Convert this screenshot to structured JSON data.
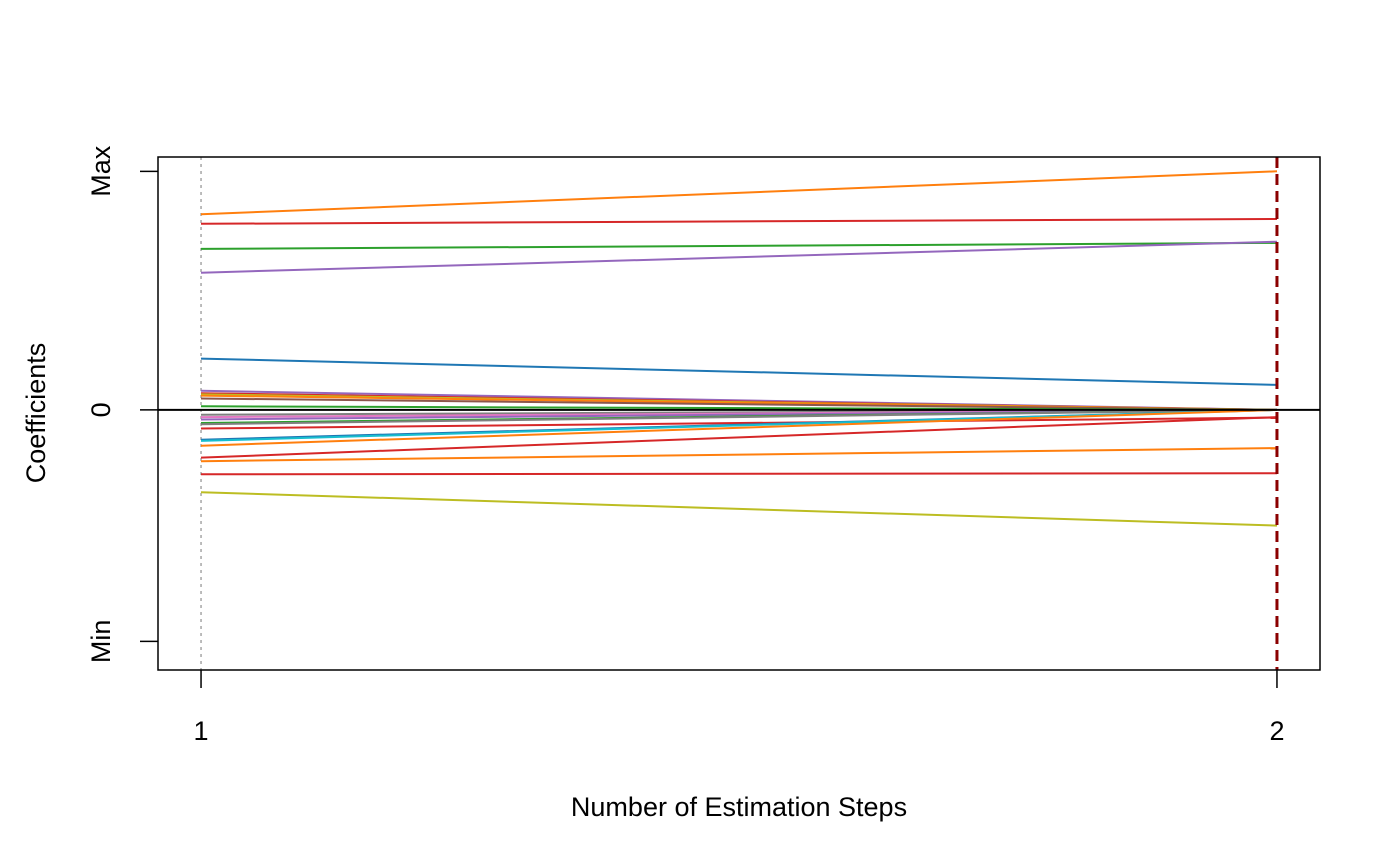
{
  "chart_data": {
    "type": "line",
    "title": "",
    "xlabel": "Number of Estimation Steps",
    "ylabel": "Coefficients",
    "x": [
      1,
      2
    ],
    "xlim": [
      0.96,
      2.04
    ],
    "x_ticks": [
      1,
      2
    ],
    "x_tick_labels": [
      "1",
      "2"
    ],
    "ylim": [
      -1.09,
      1.06
    ],
    "y_ticks": [
      -0.97,
      0,
      1.0
    ],
    "y_tick_labels": [
      "Min",
      "0",
      "Max"
    ],
    "grid": false,
    "legend": "none",
    "reference_lines": {
      "zero_line_y": 0,
      "start_marker_x": 1,
      "stop_marker_x": 2,
      "zero_line_color": "#000000",
      "start_marker_color": "#a6a6a6",
      "stop_marker_color": "#8b0000"
    },
    "series": [
      {
        "color": "#ff7f0e",
        "values": [
          0.82,
          1.0
        ]
      },
      {
        "color": "#d62728",
        "values": [
          0.78,
          0.8
        ]
      },
      {
        "color": "#2ca02c",
        "values": [
          0.675,
          0.7
        ]
      },
      {
        "color": "#9467bd",
        "values": [
          0.575,
          0.705
        ]
      },
      {
        "color": "#1f77b4",
        "values": [
          0.215,
          0.105
        ]
      },
      {
        "color": "#9467bd",
        "values": [
          0.08,
          0.0
        ]
      },
      {
        "color": "#d62728",
        "values": [
          0.07,
          0.0
        ]
      },
      {
        "color": "#bcbd22",
        "values": [
          0.065,
          0.0
        ]
      },
      {
        "color": "#ff7f0e",
        "values": [
          0.06,
          0.0
        ]
      },
      {
        "color": "#8c564b",
        "values": [
          0.048,
          0.0
        ]
      },
      {
        "color": "#2ca02c",
        "values": [
          0.015,
          0.0
        ]
      },
      {
        "color": "#7f7f7f",
        "values": [
          -0.02,
          0.0
        ]
      },
      {
        "color": "#e377c2",
        "values": [
          -0.03,
          0.0
        ]
      },
      {
        "color": "#9467bd",
        "values": [
          -0.04,
          0.0
        ]
      },
      {
        "color": "#2ca02c",
        "values": [
          -0.055,
          0.0
        ]
      },
      {
        "color": "#7f7f7f",
        "values": [
          -0.06,
          0.0
        ]
      },
      {
        "color": "#d62728",
        "values": [
          -0.078,
          -0.032
        ]
      },
      {
        "color": "#1f77b4",
        "values": [
          -0.125,
          0.0
        ]
      },
      {
        "color": "#17becf",
        "values": [
          -0.13,
          0.0
        ]
      },
      {
        "color": "#ff7f0e",
        "values": [
          -0.15,
          0.0
        ]
      },
      {
        "color": "#d62728",
        "values": [
          -0.2,
          -0.03
        ]
      },
      {
        "color": "#ff7f0e",
        "values": [
          -0.215,
          -0.16
        ]
      },
      {
        "color": "#d62728",
        "values": [
          -0.27,
          -0.265
        ]
      },
      {
        "color": "#bcbd22",
        "values": [
          -0.345,
          -0.485
        ]
      }
    ]
  }
}
